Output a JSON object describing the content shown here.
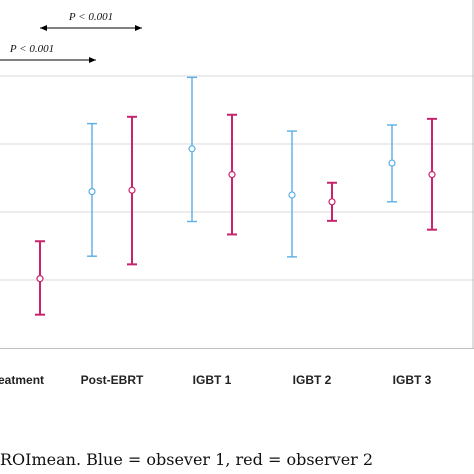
{
  "chart_data": {
    "type": "errorbar",
    "categories": [
      "eatment",
      "Post-EBRT",
      "IGBT 1",
      "IGBT 2",
      "IGBT 3"
    ],
    "series": [
      {
        "color": "#5aaee6",
        "points": [
          null,
          {
            "mean": 2.3,
            "low": 1.35,
            "high": 3.3
          },
          {
            "mean": 2.93,
            "low": 1.86,
            "high": 3.98
          },
          {
            "mean": 2.25,
            "low": 1.34,
            "high": 3.19
          },
          {
            "mean": 2.72,
            "low": 2.15,
            "high": 3.28
          }
        ]
      },
      {
        "color": "#c8246e",
        "points": [
          {
            "mean": 1.02,
            "low": 0.49,
            "high": 1.57
          },
          {
            "mean": 2.32,
            "low": 1.23,
            "high": 3.4
          },
          {
            "mean": 2.55,
            "low": 1.67,
            "high": 3.43
          },
          {
            "mean": 2.15,
            "low": 1.87,
            "high": 2.43
          },
          {
            "mean": 2.55,
            "low": 1.74,
            "high": 3.37
          }
        ]
      }
    ],
    "ylim": [
      0,
      5
    ],
    "gridlines": [
      1,
      2,
      3,
      4
    ],
    "grid": true,
    "annotations": [
      {
        "text": "P < 0.001",
        "from": "IGBT 1",
        "to": "Post-EBRT",
        "tier": 1
      },
      {
        "text": "P < 0.001",
        "from": "eatment",
        "to": "Post-EBRT",
        "tier": 2
      }
    ]
  },
  "caption": "ROImean. Blue = obsever 1, red = observer 2"
}
